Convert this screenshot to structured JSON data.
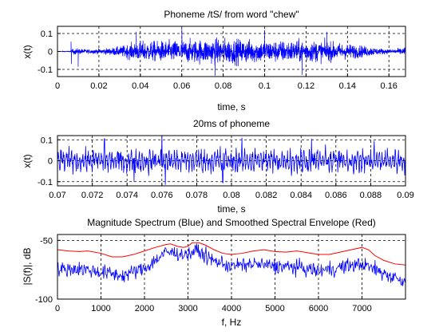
{
  "chart_data": [
    {
      "type": "line",
      "title": "Phoneme /tS/ from word \"chew\"",
      "xlabel": "time, s",
      "ylabel": "x(t)",
      "xlim": [
        0,
        0.168
      ],
      "ylim": [
        -0.14,
        0.14
      ],
      "xticks": [
        "0",
        "0.02",
        "0.04",
        "0.06",
        "0.08",
        "0.1",
        "0.12",
        "0.14",
        "0.16"
      ],
      "yticks": [
        "0.1",
        "0",
        "-0.1"
      ],
      "grid": true,
      "series": [
        {
          "color": "#0000ff",
          "envelope_t": [
            0,
            0.006,
            0.008,
            0.015,
            0.025,
            0.03,
            0.035,
            0.04,
            0.05,
            0.06,
            0.07,
            0.08,
            0.09,
            0.1,
            0.11,
            0.12,
            0.13,
            0.14,
            0.145,
            0.15,
            0.155,
            0.16,
            0.165,
            0.168
          ],
          "envelope_amplitude": [
            0.002,
            0.004,
            0.03,
            0.018,
            0.03,
            0.045,
            0.07,
            0.09,
            0.095,
            0.1,
            0.11,
            0.12,
            0.11,
            0.1,
            0.1,
            0.1,
            0.09,
            0.07,
            0.06,
            0.045,
            0.03,
            0.02,
            0.03,
            0.04
          ],
          "peaks": [
            [
              0.0065,
              0.055
            ],
            [
              0.0067,
              -0.07
            ],
            [
              0.01,
              -0.085
            ],
            [
              0.038,
              0.11
            ],
            [
              0.06,
              0.13
            ],
            [
              0.076,
              -0.135
            ],
            [
              0.1,
              0.12
            ],
            [
              0.118,
              -0.13
            ],
            [
              0.13,
              0.11
            ]
          ]
        }
      ]
    },
    {
      "type": "line",
      "title": "20ms of phoneme",
      "xlabel": "time, s",
      "ylabel": "x(t)",
      "xlim": [
        0.07,
        0.09
      ],
      "ylim": [
        -0.12,
        0.12
      ],
      "xticks": [
        "0.07",
        "0.072",
        "0.074",
        "0.076",
        "0.078",
        "0.08",
        "0.082",
        "0.084",
        "0.086",
        "0.088",
        "0.09"
      ],
      "yticks": [
        "0.1",
        "0",
        "-0.1"
      ],
      "grid": true,
      "series": [
        {
          "color": "#0000ff",
          "typical_amplitude": 0.075,
          "peaks": [
            [
              0.0727,
              0.105
            ],
            [
              0.076,
              0.12
            ],
            [
              0.0762,
              -0.115
            ],
            [
              0.0806,
              0.11
            ],
            [
              0.0846,
              0.105
            ],
            [
              0.0882,
              0.095
            ],
            [
              0.0744,
              -0.1
            ],
            [
              0.0795,
              -0.105
            ]
          ]
        }
      ]
    },
    {
      "type": "line",
      "title": "Magnitude Spectrum (Blue) and Smoothed Spectral Envelope (Red)",
      "xlabel": "f, Hz",
      "ylabel": "|S(f)|, dB",
      "xlim": [
        0,
        8000
      ],
      "ylim": [
        -100,
        -45
      ],
      "xticks": [
        "0",
        "1000",
        "2000",
        "3000",
        "4000",
        "5000",
        "6000",
        "7000"
      ],
      "yticks": [
        "-50",
        "-100"
      ],
      "grid": true,
      "series": [
        {
          "name": "Smoothed Spectral Envelope",
          "color": "#ff0000",
          "x": [
            0,
            250,
            500,
            700,
            1000,
            1250,
            1500,
            1750,
            2000,
            2250,
            2500,
            2600,
            2750,
            2900,
            3000,
            3100,
            3250,
            3400,
            3600,
            3800,
            4000,
            4250,
            4500,
            4750,
            5000,
            5250,
            5500,
            5750,
            6000,
            6250,
            6500,
            6750,
            7000,
            7150,
            7300,
            7500,
            7750,
            8000
          ],
          "y": [
            -58,
            -59,
            -59.5,
            -59,
            -61,
            -64,
            -64,
            -62,
            -59,
            -56,
            -53.5,
            -53,
            -55,
            -56,
            -55,
            -52,
            -52,
            -54,
            -58,
            -61,
            -62,
            -61,
            -59,
            -58,
            -59.5,
            -60,
            -59,
            -60.5,
            -62,
            -62,
            -60,
            -58,
            -56,
            -58,
            -63,
            -67,
            -70,
            -71
          ]
        },
        {
          "name": "Magnitude Spectrum",
          "color": "#0000ff",
          "baseline_x": [
            0,
            500,
            1000,
            1500,
            2000,
            2500,
            3000,
            3200,
            3500,
            4000,
            4500,
            5000,
            5500,
            6000,
            6500,
            7000,
            7500,
            8000
          ],
          "baseline_y": [
            -75,
            -74,
            -77,
            -80,
            -74,
            -60,
            -62,
            -58,
            -66,
            -72,
            -70,
            -72,
            -73,
            -76,
            -73,
            -70,
            -78,
            -85
          ]
        }
      ]
    }
  ]
}
